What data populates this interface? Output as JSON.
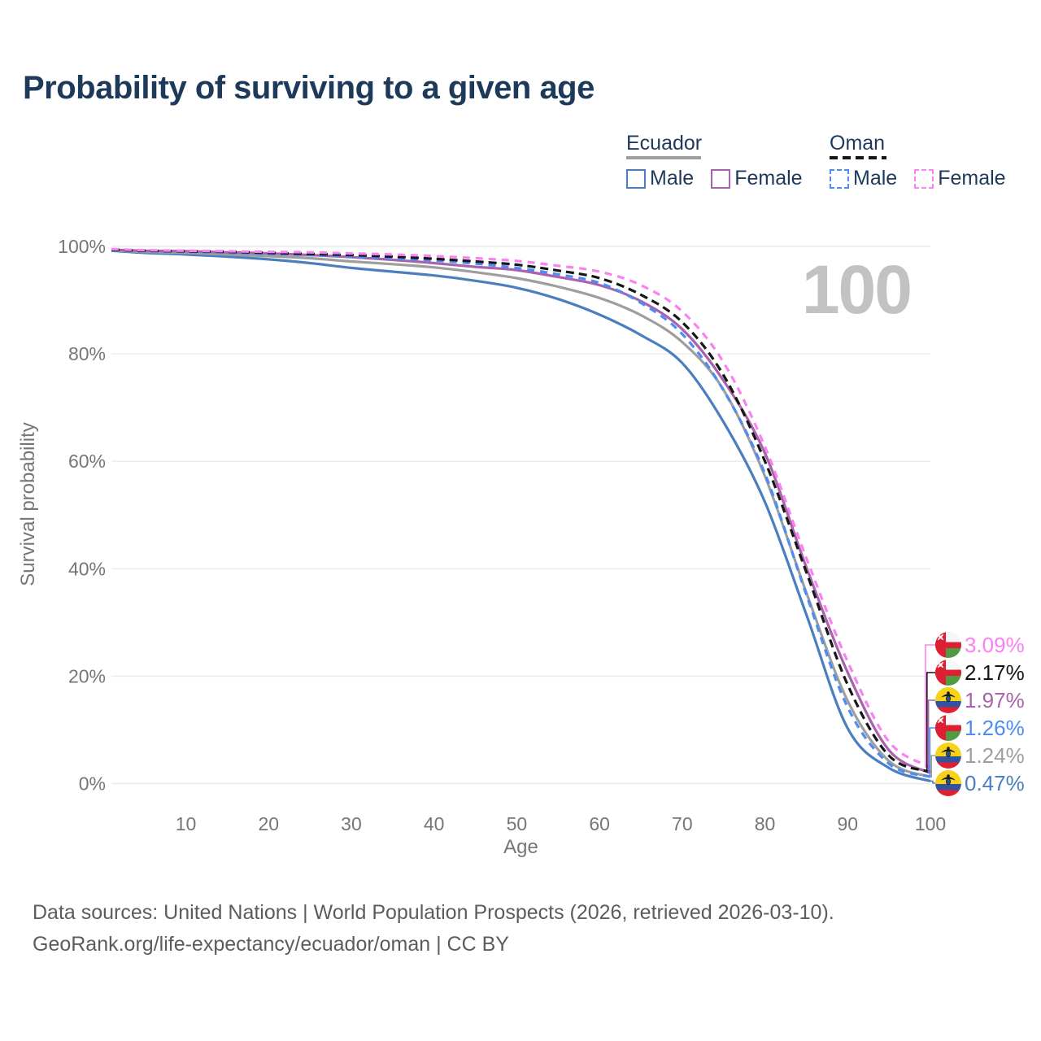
{
  "title": "Probability of surviving to a given age",
  "watermark": "100",
  "legend": {
    "groups": [
      {
        "label": "Ecuador",
        "line_style": "solid",
        "line_color": "#9e9e9e",
        "items": [
          {
            "label": "Male",
            "color": "#4a7ebf",
            "dashed": false
          },
          {
            "label": "Female",
            "color": "#a763ab",
            "dashed": false
          }
        ]
      },
      {
        "label": "Oman",
        "line_style": "dashed",
        "line_color": "#161616",
        "items": [
          {
            "label": "Male",
            "color": "#4d8bf5",
            "dashed": true
          },
          {
            "label": "Female",
            "color": "#fb80f1",
            "dashed": true
          }
        ]
      }
    ]
  },
  "chart_data": {
    "type": "line",
    "title": "Probability of surviving to a given age",
    "xlabel": "Age",
    "ylabel": "Survival probability",
    "xlim": [
      1,
      100
    ],
    "ylim": [
      0,
      100
    ],
    "grid": true,
    "x_ticks": [
      10,
      20,
      30,
      40,
      50,
      60,
      70,
      80,
      90,
      100
    ],
    "y_ticks": [
      {
        "label": "100%",
        "value": 100
      },
      {
        "label": "80%",
        "value": 80
      },
      {
        "label": "60%",
        "value": 60
      },
      {
        "label": "40%",
        "value": 40
      },
      {
        "label": "20%",
        "value": 20
      },
      {
        "label": "0%",
        "value": 0
      }
    ],
    "x": [
      1,
      5,
      10,
      15,
      20,
      25,
      30,
      35,
      40,
      45,
      50,
      55,
      60,
      65,
      70,
      75,
      80,
      85,
      90,
      95,
      100
    ],
    "series": [
      {
        "name": "Ecuador Male",
        "country": "Ecuador",
        "sex": "male",
        "color": "#4a7ebf",
        "dash": null,
        "flag": "ecuador-flag-icon",
        "end_label": "0.47%",
        "values": [
          99.2,
          98.8,
          98.5,
          98.1,
          97.6,
          96.9,
          96.0,
          95.3,
          94.6,
          93.6,
          92.3,
          90.2,
          87.3,
          83.5,
          78.3,
          67.3,
          52.4,
          31.5,
          10.3,
          2.9,
          0.47
        ]
      },
      {
        "name": "Ecuador",
        "country": "Ecuador",
        "sex": "both",
        "color": "#9e9e9e",
        "dash": null,
        "flag": "ecuador-flag-icon",
        "end_label": "1.24%",
        "values": [
          99.3,
          99.0,
          98.8,
          98.5,
          98.2,
          97.8,
          97.2,
          96.7,
          96.1,
          95.2,
          94.1,
          92.5,
          90.4,
          87.2,
          82.2,
          73.3,
          57.2,
          35.6,
          15.4,
          4.2,
          1.24
        ]
      },
      {
        "name": "Ecuador Female",
        "country": "Ecuador",
        "sex": "female",
        "color": "#a763ab",
        "dash": null,
        "flag": "ecuador-flag-icon",
        "end_label": "1.97%",
        "values": [
          99.4,
          99.2,
          99.1,
          98.9,
          98.7,
          98.4,
          98.0,
          97.5,
          96.9,
          96.2,
          95.6,
          94.3,
          92.8,
          89.8,
          84.6,
          75.0,
          61.5,
          40.3,
          20.7,
          6.2,
          1.97
        ]
      },
      {
        "name": "Oman Male",
        "country": "Oman",
        "sex": "male",
        "color": "#4d8bf5",
        "dash": "9 7",
        "flag": "oman-flag-icon",
        "end_label": "1.26%",
        "values": [
          99.3,
          99.1,
          99.0,
          98.8,
          98.6,
          98.4,
          98.1,
          97.8,
          97.4,
          96.8,
          96.0,
          94.8,
          93.2,
          89.5,
          83.7,
          73.2,
          57.7,
          35.2,
          14.2,
          3.7,
          1.26
        ]
      },
      {
        "name": "Oman",
        "country": "Oman",
        "sex": "both",
        "color": "#161616",
        "dash": "10 6",
        "flag": "oman-flag-icon",
        "end_label": "2.17%",
        "values": [
          99.4,
          99.2,
          99.1,
          99.0,
          98.8,
          98.6,
          98.4,
          98.1,
          97.7,
          97.2,
          96.6,
          95.5,
          94.1,
          91.0,
          85.9,
          76.0,
          60.0,
          39.4,
          18.4,
          5.2,
          2.17
        ]
      },
      {
        "name": "Oman Female",
        "country": "Oman",
        "sex": "female",
        "color": "#fb80f1",
        "dash": "9 7",
        "flag": "oman-flag-icon",
        "end_label": "3.09%",
        "values": [
          99.5,
          99.3,
          99.2,
          99.1,
          99.0,
          98.9,
          98.7,
          98.5,
          98.2,
          97.8,
          97.3,
          96.4,
          95.3,
          92.8,
          87.9,
          78.4,
          62.7,
          42.0,
          22.7,
          7.8,
          3.09
        ]
      }
    ],
    "flag_colors": {
      "oman_red": "#dd1f33",
      "oman_green": "#4f9a43",
      "oman_white": "#f7f7f7",
      "ecuador_yellow": "#f6d319",
      "ecuador_blue": "#33539f",
      "ecuador_red": "#e01f32",
      "emblem_dark": "#1a1a1a",
      "emblem_shield": "#27518f"
    },
    "style": {
      "grid_color": "#eaeaea",
      "axis_text_color": "#767676",
      "watermark_color": "#c2c2c2"
    }
  },
  "footer": {
    "line1": "Data sources: United Nations | World Population Prospects (2026, retrieved 2026-03-10).",
    "line2": "GeoRank.org/life-expectancy/ecuador/oman | CC BY"
  }
}
